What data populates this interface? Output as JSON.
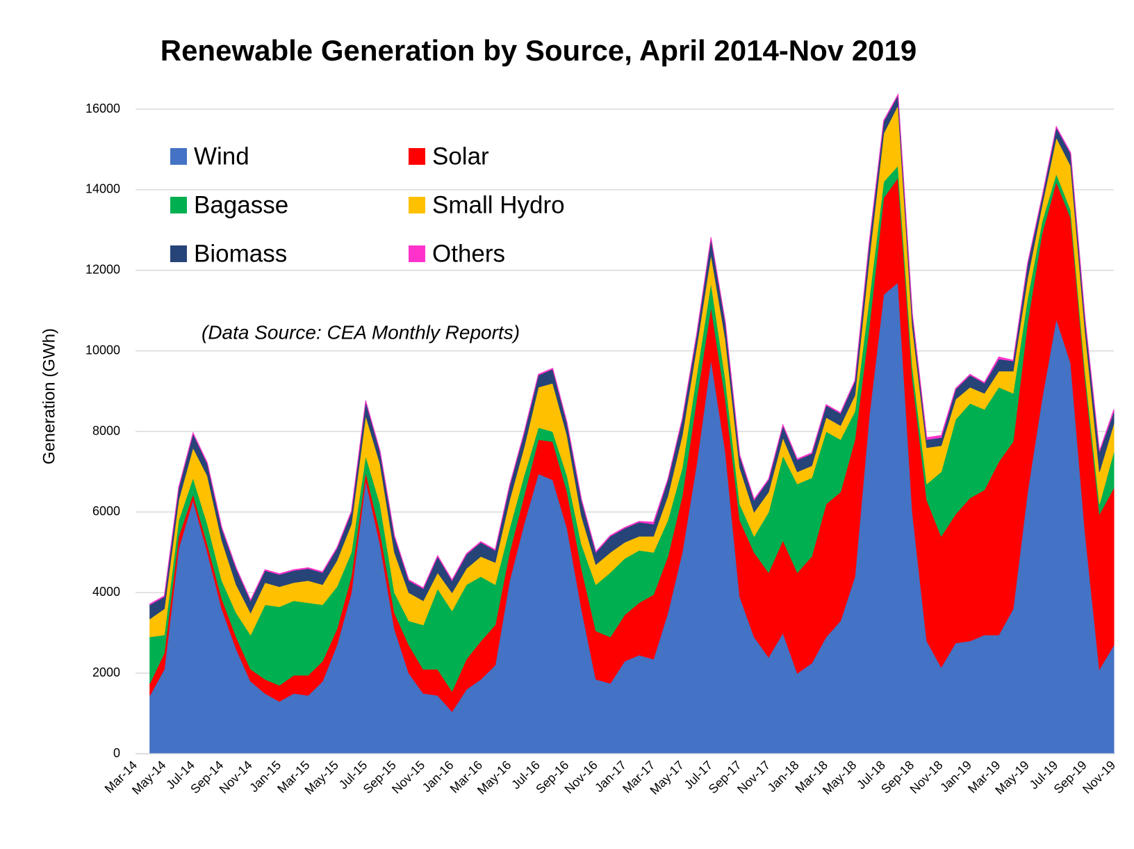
{
  "chart_data": {
    "type": "stacked_area",
    "title": "Renewable Generation by Source, April 2014-Nov 2019",
    "y_label": "Generation (GWh)",
    "annotation": "(Data Source: CEA Monthly Reports)",
    "categories": [
      "Mar-14",
      null,
      "May-14",
      null,
      "Jul-14",
      null,
      "Sep-14",
      null,
      "Nov-14",
      null,
      "Jan-15",
      null,
      "Mar-15",
      null,
      "May-15",
      null,
      "Jul-15",
      null,
      "Sep-15",
      null,
      "Nov-15",
      null,
      "Jan-16",
      null,
      "Mar-16",
      null,
      "May-16",
      null,
      "Jul-16",
      null,
      "Sep-16",
      null,
      "Nov-16",
      null,
      "Jan-17",
      null,
      "Mar-17",
      null,
      "May-17",
      null,
      "Jul-17",
      null,
      "Sep-17",
      null,
      "Nov-17",
      null,
      "Jan-18",
      null,
      "Mar-18",
      null,
      "May-18",
      null,
      "Jul-18",
      null,
      "Sep-18",
      null,
      "Nov-18",
      null,
      "Jan-19",
      null,
      "Mar-19",
      null,
      "May-19",
      null,
      "Jul-19",
      null,
      "Sep-19",
      null,
      "Nov-19"
    ],
    "series": [
      {
        "name": "Wind",
        "color": "#4472c4",
        "values": [
          null,
          1450,
          2100,
          5100,
          6300,
          5000,
          3600,
          2600,
          1800,
          1500,
          1300,
          1500,
          1450,
          1800,
          2700,
          4000,
          6800,
          5200,
          3100,
          2000,
          1500,
          1450,
          1050,
          1600,
          1850,
          2200,
          4300,
          5700,
          6950,
          6800,
          5600,
          3600,
          1850,
          1750,
          2300,
          2450,
          2350,
          3500,
          5000,
          7200,
          9800,
          7500,
          3900,
          2900,
          2400,
          3000,
          2000,
          2250,
          2900,
          3300,
          4400,
          8400,
          11400,
          11700,
          6000,
          2800,
          2150,
          2750,
          2800,
          2950,
          2950,
          3600,
          6500,
          8800,
          10800,
          9700,
          5500,
          2100,
          2700
        ]
      },
      {
        "name": "Solar",
        "color": "#ff0000",
        "values": [
          null,
          300,
          400,
          300,
          150,
          200,
          250,
          300,
          300,
          350,
          400,
          450,
          500,
          500,
          400,
          400,
          200,
          300,
          400,
          700,
          600,
          650,
          500,
          750,
          950,
          1000,
          700,
          700,
          850,
          950,
          900,
          1000,
          1200,
          1150,
          1150,
          1300,
          1600,
          1400,
          1400,
          1600,
          1300,
          1300,
          1900,
          2100,
          2100,
          2300,
          2500,
          2650,
          3300,
          3200,
          3400,
          2200,
          2400,
          2600,
          3300,
          3500,
          3250,
          3200,
          3550,
          3600,
          4300,
          4150,
          4200,
          4100,
          3400,
          3600,
          3800,
          3850,
          3900
        ]
      },
      {
        "name": "Bagasse",
        "color": "#00b050",
        "values": [
          null,
          1150,
          450,
          400,
          400,
          500,
          450,
          600,
          850,
          1850,
          1950,
          1850,
          1800,
          1400,
          1050,
          600,
          400,
          700,
          500,
          600,
          1100,
          2000,
          2000,
          1850,
          1600,
          1000,
          600,
          500,
          300,
          250,
          400,
          600,
          1150,
          1600,
          1400,
          1300,
          1050,
          900,
          700,
          600,
          600,
          500,
          400,
          400,
          1500,
          2100,
          2200,
          1950,
          1800,
          1300,
          700,
          700,
          400,
          300,
          300,
          400,
          1600,
          2350,
          2350,
          2000,
          1850,
          1200,
          600,
          300,
          200,
          200,
          200,
          250,
          900
        ]
      },
      {
        "name": "Small Hydro",
        "color": "#ffc000",
        "values": [
          null,
          450,
          650,
          500,
          750,
          1200,
          1000,
          700,
          550,
          550,
          500,
          450,
          550,
          500,
          650,
          700,
          1000,
          1000,
          1000,
          700,
          600,
          400,
          450,
          400,
          500,
          550,
          700,
          700,
          1000,
          1200,
          1000,
          700,
          500,
          500,
          400,
          350,
          400,
          600,
          800,
          700,
          700,
          1000,
          900,
          600,
          500,
          450,
          300,
          300,
          350,
          350,
          400,
          1000,
          1200,
          1500,
          1000,
          900,
          650,
          500,
          400,
          400,
          400,
          550,
          500,
          400,
          900,
          1100,
          1000,
          800,
          700
        ]
      },
      {
        "name": "Biomass",
        "color": "#264478",
        "values": [
          null,
          350,
          300,
          300,
          350,
          300,
          300,
          400,
          300,
          300,
          300,
          300,
          300,
          300,
          300,
          300,
          350,
          300,
          400,
          300,
          300,
          400,
          300,
          350,
          350,
          300,
          350,
          350,
          300,
          350,
          300,
          400,
          300,
          400,
          350,
          350,
          300,
          400,
          400,
          300,
          400,
          400,
          300,
          300,
          300,
          300,
          300,
          300,
          300,
          300,
          350,
          400,
          300,
          250,
          300,
          200,
          200,
          250,
          300,
          250,
          300,
          250,
          350,
          200,
          250,
          300,
          300,
          500,
          300
        ]
      },
      {
        "name": "Others",
        "color": "#ff33cc",
        "values": [
          null,
          20,
          20,
          20,
          20,
          20,
          20,
          20,
          20,
          20,
          20,
          20,
          20,
          20,
          20,
          20,
          20,
          20,
          20,
          20,
          20,
          20,
          20,
          20,
          20,
          20,
          20,
          20,
          20,
          20,
          20,
          20,
          20,
          20,
          20,
          20,
          50,
          20,
          20,
          20,
          20,
          20,
          20,
          20,
          20,
          20,
          20,
          20,
          20,
          20,
          20,
          20,
          20,
          20,
          20,
          50,
          50,
          20,
          20,
          20,
          50,
          20,
          20,
          20,
          20,
          20,
          20,
          20,
          50
        ]
      }
    ],
    "ylim": [
      0,
      17000
    ],
    "yticks": [
      0,
      2000,
      4000,
      6000,
      8000,
      10000,
      12000,
      14000,
      16000
    ],
    "grid": true
  }
}
